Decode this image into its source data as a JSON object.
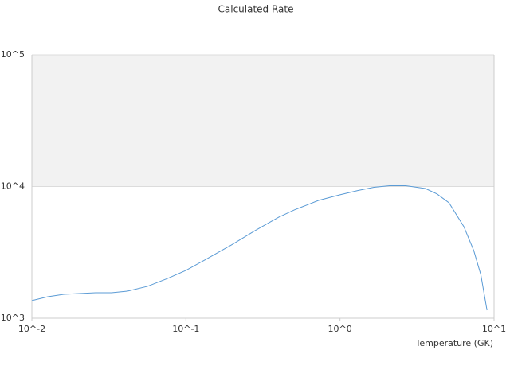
{
  "chart_data": {
    "type": "line",
    "title": "Calculated Rate",
    "x_label": "Temperature (GK)",
    "x": [
      0.01,
      0.0127,
      0.0161,
      0.0204,
      0.0259,
      0.0329,
      0.0417,
      0.0563,
      0.076,
      0.1,
      0.138,
      0.197,
      0.281,
      0.4,
      0.505,
      0.725,
      1.0,
      1.31,
      1.66,
      2.1,
      2.67,
      3.58,
      4.27,
      5.1,
      6.37,
      7.38,
      8.2,
      9.0
    ],
    "series": [
      {
        "name": "Calculated Rate",
        "color": "#5b9bd5",
        "values": [
          1360,
          1456,
          1517,
          1540,
          1560,
          1560,
          1604,
          1746,
          2004,
          2306,
          2840,
          3594,
          4624,
          5852,
          6637,
          7838,
          8650,
          9330,
          9860,
          10140,
          10140,
          9660,
          8770,
          7520,
          4955,
          3265,
          2148,
          1149
        ]
      }
    ],
    "xlim": [
      0.01,
      10
    ],
    "ylim": [
      1000,
      100000
    ],
    "xscale": "log",
    "yscale": "log",
    "xticks": [
      {
        "value": 0.01,
        "label": "10^-2"
      },
      {
        "value": 0.1,
        "label": "10^-1"
      },
      {
        "value": 1,
        "label": "10^0"
      },
      {
        "value": 10,
        "label": "10^1"
      }
    ],
    "yticks": [
      {
        "value": 1000,
        "label": "10^3"
      },
      {
        "value": 10000,
        "label": "10^4"
      },
      {
        "value": 100000,
        "label": "10^5"
      }
    ],
    "grid": true,
    "alternate_bands": true
  }
}
